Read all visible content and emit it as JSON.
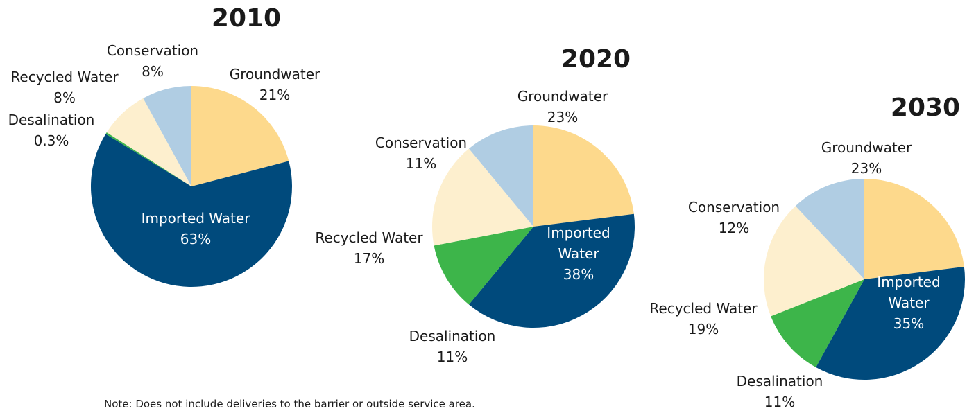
{
  "colors": {
    "Imported Water": "#004a7c",
    "Groundwater": "#fdd98c",
    "Conservation": "#b0cde3",
    "Recycled Water": "#fdefce",
    "Desalination": "#3db54a"
  },
  "chart_data": [
    {
      "type": "pie",
      "title": "2010",
      "slices": [
        {
          "label": "Groundwater",
          "pct": "21%",
          "value": 21
        },
        {
          "label": "Imported Water",
          "pct": "63%",
          "value": 63
        },
        {
          "label": "Desalination",
          "pct": "0.3%",
          "value": 0.3
        },
        {
          "label": "Recycled Water",
          "pct": "8%",
          "value": 8
        },
        {
          "label": "Conservation",
          "pct": "8%",
          "value": 8
        }
      ]
    },
    {
      "type": "pie",
      "title": "2020",
      "slices": [
        {
          "label": "Groundwater",
          "pct": "23%",
          "value": 23
        },
        {
          "label": "Imported Water",
          "pct": "38%",
          "value": 38
        },
        {
          "label": "Desalination",
          "pct": "11%",
          "value": 11
        },
        {
          "label": "Recycled Water",
          "pct": "17%",
          "value": 17
        },
        {
          "label": "Conservation",
          "pct": "11%",
          "value": 11
        }
      ]
    },
    {
      "type": "pie",
      "title": "2030",
      "slices": [
        {
          "label": "Groundwater",
          "pct": "23%",
          "value": 23
        },
        {
          "label": "Imported Water",
          "pct": "35%",
          "value": 35
        },
        {
          "label": "Desalination",
          "pct": "11%",
          "value": 11
        },
        {
          "label": "Recycled Water",
          "pct": "19%",
          "value": 19
        },
        {
          "label": "Conservation",
          "pct": "12%",
          "value": 12
        }
      ]
    }
  ],
  "note": "Note: Does not include deliveries to the barrier or outside service area."
}
